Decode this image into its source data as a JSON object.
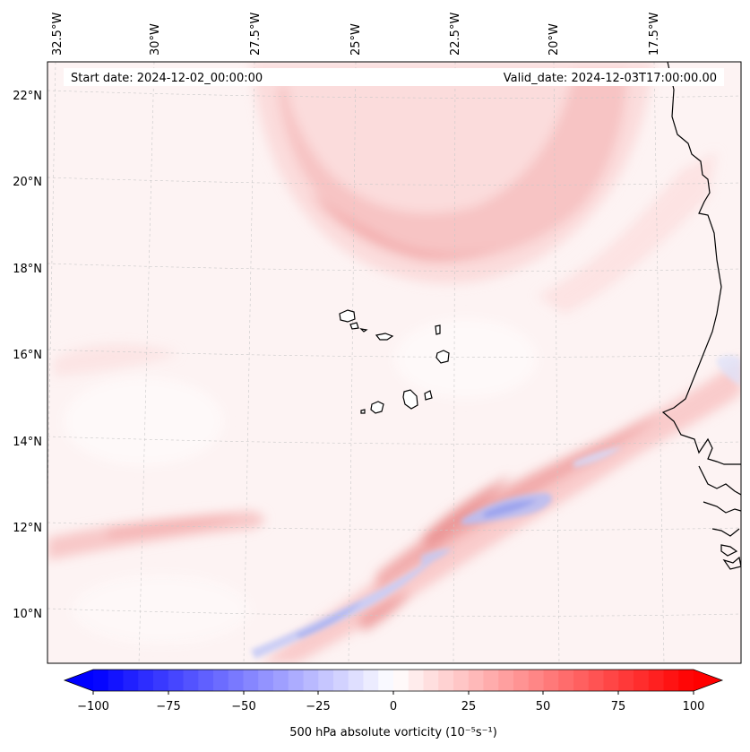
{
  "header": {
    "start_date": "Start date: 2024-12-02_00:00:00",
    "valid_date": "Valid_date: 2024-12-03T17:00:00.00"
  },
  "axes": {
    "lon_labels": [
      "32.5°W",
      "30°W",
      "27.5°W",
      "25°W",
      "22.5°W",
      "20°W",
      "17.5°W"
    ],
    "lat_labels": [
      "22°N",
      "20°N",
      "18°N",
      "16°N",
      "14°N",
      "12°N",
      "10°N"
    ]
  },
  "colorbar": {
    "label": "500 hPa absolute vorticity (10⁻⁵s⁻¹)",
    "ticks": [
      "−100",
      "−75",
      "−50",
      "−25",
      "0",
      "25",
      "50",
      "75",
      "100"
    ],
    "min": -100,
    "max": 100,
    "levels": 40
  },
  "colors": {
    "negative_end": "#0000ff",
    "positive_end": "#ff0000",
    "neutral": "#ffffff",
    "coast": "#000000",
    "grid": "#c8c8c8"
  }
}
